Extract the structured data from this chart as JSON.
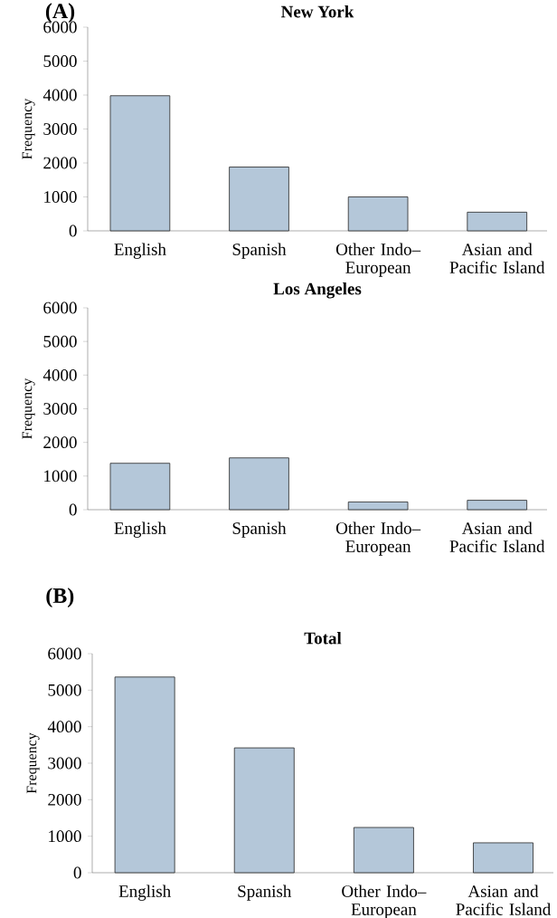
{
  "chart_data": [
    {
      "type": "bar",
      "title": "New York",
      "ylabel": "Frequency",
      "annotations": [
        "(A)"
      ],
      "categories": [
        "English",
        "Spanish",
        "Other Indo–European",
        "Asian and Pacific Island"
      ],
      "values": [
        3980,
        1880,
        1000,
        550
      ],
      "color": "#b4c7d9",
      "ylim": [
        0,
        6000
      ],
      "yticks": [
        0,
        1000,
        2000,
        3000,
        4000,
        5000,
        6000
      ],
      "grid": false
    },
    {
      "type": "bar",
      "title": "Los Angeles",
      "ylabel": "Frequency",
      "categories": [
        "English",
        "Spanish",
        "Other Indo–European",
        "Asian and Pacific Island"
      ],
      "values": [
        1380,
        1540,
        230,
        280
      ],
      "color": "#b4c7d9",
      "ylim": [
        0,
        6000
      ],
      "yticks": [
        0,
        1000,
        2000,
        3000,
        4000,
        5000,
        6000
      ],
      "grid": false
    },
    {
      "type": "bar",
      "title": "Total",
      "ylabel": "Frequency",
      "annotations": [
        "(B)"
      ],
      "categories": [
        "English",
        "Spanish",
        "Other Indo–European",
        "Asian and Pacific Island"
      ],
      "values": [
        5360,
        3420,
        1240,
        820
      ],
      "color": "#b4c7d9",
      "ylim": [
        0,
        6000
      ],
      "yticks": [
        0,
        1000,
        2000,
        3000,
        4000,
        5000,
        6000
      ],
      "grid": false
    }
  ]
}
